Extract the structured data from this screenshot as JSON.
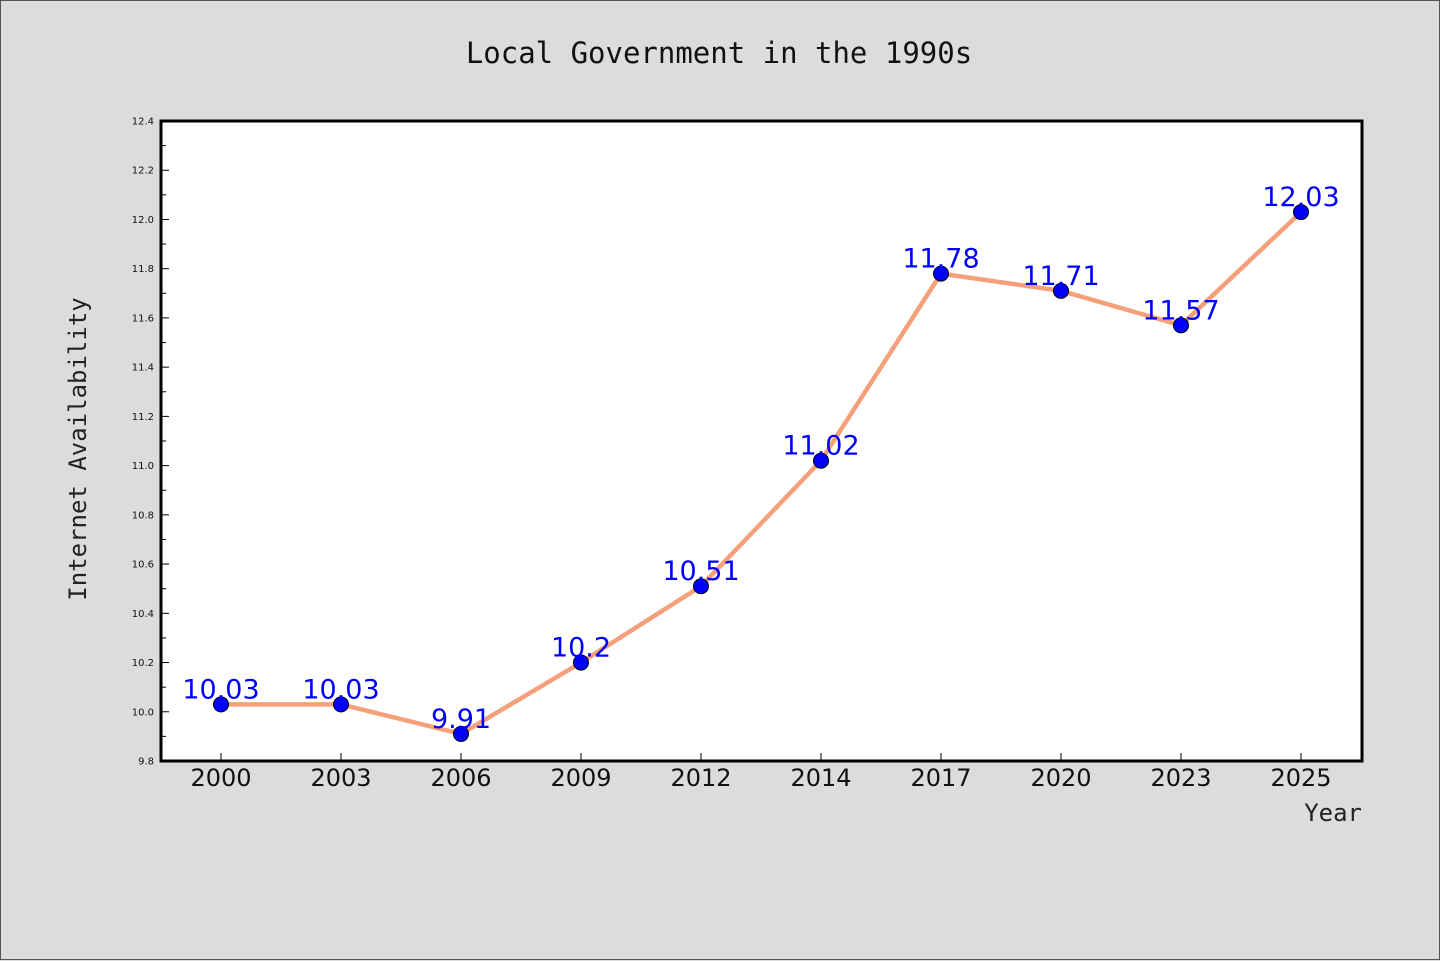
{
  "chart_data": {
    "type": "line",
    "title": "Local Government in the 1990s",
    "xlabel": "Year",
    "ylabel": "Internet Availability",
    "categories": [
      "2000",
      "2003",
      "2006",
      "2009",
      "2012",
      "2014",
      "2017",
      "2020",
      "2023",
      "2025"
    ],
    "series": [
      {
        "values": [
          10.03,
          10.03,
          9.91,
          10.2,
          10.51,
          11.02,
          11.78,
          11.71,
          11.57,
          12.03
        ],
        "labels": [
          "10.03",
          "10.03",
          "9.91",
          "10.2",
          "10.51",
          "11.02",
          "11.78",
          "11.71",
          "11.57",
          "12.03"
        ],
        "line_color": "#f4a07a",
        "marker_color": "#0000ff",
        "label_color": "#0000ff"
      }
    ],
    "ylim": [
      9.8,
      12.4
    ],
    "yticks": [
      "9.8",
      "10.0",
      "10.2",
      "10.4",
      "10.6",
      "10.8",
      "11.0",
      "11.2",
      "11.4",
      "11.6",
      "11.8",
      "12.0",
      "12.2",
      "12.4"
    ],
    "grid": false,
    "legend": "none",
    "background_color": "#dcdcdc",
    "plot_background_color": "#ffffff"
  }
}
